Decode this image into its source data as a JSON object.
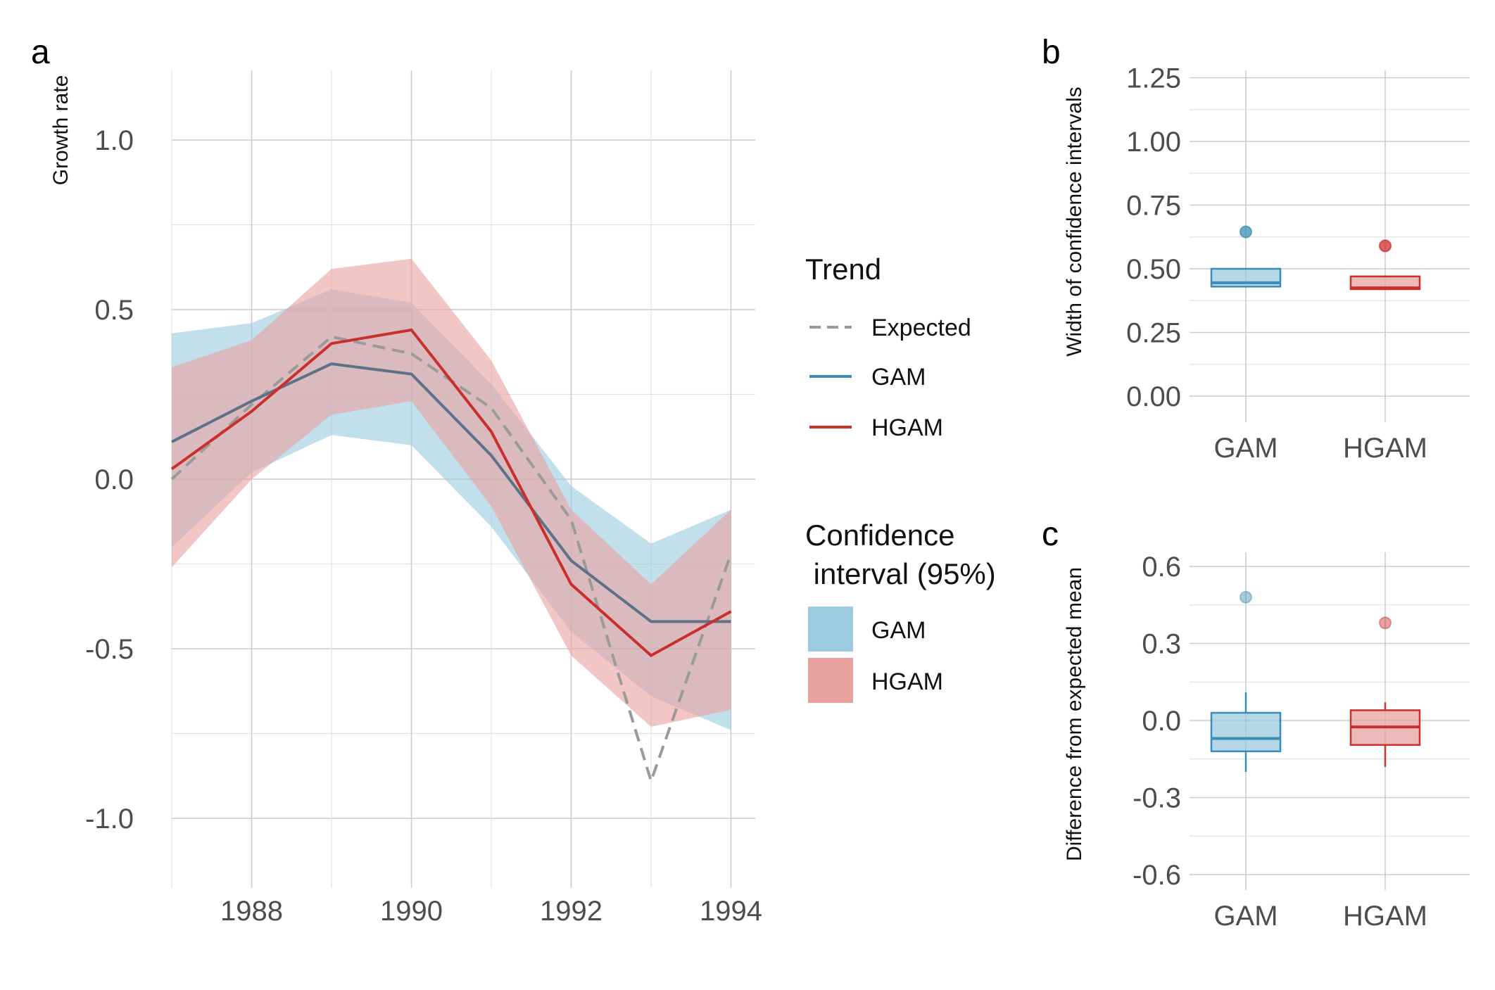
{
  "colors": {
    "gam": "#3b8db5",
    "gam_ribbon": "#9ccbe0",
    "hgam": "#c9302c",
    "hgam_ribbon": "#e8a3a1",
    "expected": "#9a9a9a",
    "gam_line_overlay": "#5d7287"
  },
  "chart_data": [
    {
      "panel": "a",
      "type": "line",
      "ylabel": "Growth rate",
      "xlim": [
        1987,
        1994
      ],
      "ylim": [
        -1.2,
        1.2
      ],
      "x_ticks": [
        "1988",
        "1990",
        "1992",
        "1994"
      ],
      "y_ticks": [
        "1.0",
        "0.5",
        "0.0",
        "-0.5",
        "-1.0"
      ],
      "x": [
        1987,
        1988,
        1989,
        1990,
        1991,
        1992,
        1993,
        1994
      ],
      "series": [
        {
          "name": "Expected",
          "style": "dashed",
          "values": [
            0.0,
            0.22,
            0.42,
            0.37,
            0.21,
            -0.12,
            -0.89,
            -0.22
          ]
        },
        {
          "name": "GAM",
          "values": [
            0.11,
            0.23,
            0.34,
            0.31,
            0.07,
            -0.24,
            -0.42,
            -0.42
          ],
          "lower": [
            -0.2,
            0.02,
            0.13,
            0.1,
            -0.14,
            -0.45,
            -0.64,
            -0.74
          ],
          "upper": [
            0.43,
            0.46,
            0.56,
            0.52,
            0.28,
            -0.02,
            -0.19,
            -0.09
          ]
        },
        {
          "name": "HGAM",
          "values": [
            0.03,
            0.2,
            0.4,
            0.44,
            0.14,
            -0.31,
            -0.52,
            -0.39
          ],
          "lower": [
            -0.26,
            0.0,
            0.19,
            0.23,
            -0.08,
            -0.52,
            -0.73,
            -0.68
          ],
          "upper": [
            0.33,
            0.41,
            0.62,
            0.65,
            0.35,
            -0.09,
            -0.31,
            -0.09
          ]
        }
      ]
    },
    {
      "panel": "b",
      "type": "boxplot",
      "ylabel": "Width of confidence intervals",
      "ylim": [
        -0.03,
        1.27
      ],
      "y_ticks": [
        "1.25",
        "1.00",
        "0.75",
        "0.50",
        "0.25",
        "0.00"
      ],
      "categories": [
        "GAM",
        "HGAM"
      ],
      "boxes": [
        {
          "name": "GAM",
          "q1": 0.43,
          "median": 0.445,
          "q3": 0.5,
          "whisker_low": 0.43,
          "whisker_high": 0.5,
          "outliers": [
            0.645
          ]
        },
        {
          "name": "HGAM",
          "q1": 0.42,
          "median": 0.425,
          "q3": 0.47,
          "whisker_low": 0.42,
          "whisker_high": 0.47,
          "outliers": [
            0.59
          ]
        }
      ]
    },
    {
      "panel": "c",
      "type": "boxplot",
      "ylabel": "Difference from expected mean",
      "ylim": [
        -0.65,
        0.65
      ],
      "y_ticks": [
        "0.6",
        "0.3",
        "0.0",
        "-0.3",
        "-0.6"
      ],
      "categories": [
        "GAM",
        "HGAM"
      ],
      "boxes": [
        {
          "name": "GAM",
          "q1": -0.12,
          "median": -0.07,
          "q3": 0.03,
          "whisker_low": -0.2,
          "whisker_high": 0.11,
          "outliers": [
            0.48
          ]
        },
        {
          "name": "HGAM",
          "q1": -0.095,
          "median": -0.025,
          "q3": 0.04,
          "whisker_low": -0.18,
          "whisker_high": 0.07,
          "outliers": [
            0.38
          ]
        }
      ]
    }
  ],
  "legend": {
    "trend_title": "Trend",
    "trend_items": [
      {
        "label": "Expected",
        "style": "dashed"
      },
      {
        "label": "GAM",
        "style": "solid"
      },
      {
        "label": "HGAM",
        "style": "solid"
      }
    ],
    "ci_title_line1": "Confidence",
    "ci_title_line2": " interval (95%)",
    "ci_items": [
      {
        "label": "GAM"
      },
      {
        "label": "HGAM"
      }
    ]
  }
}
